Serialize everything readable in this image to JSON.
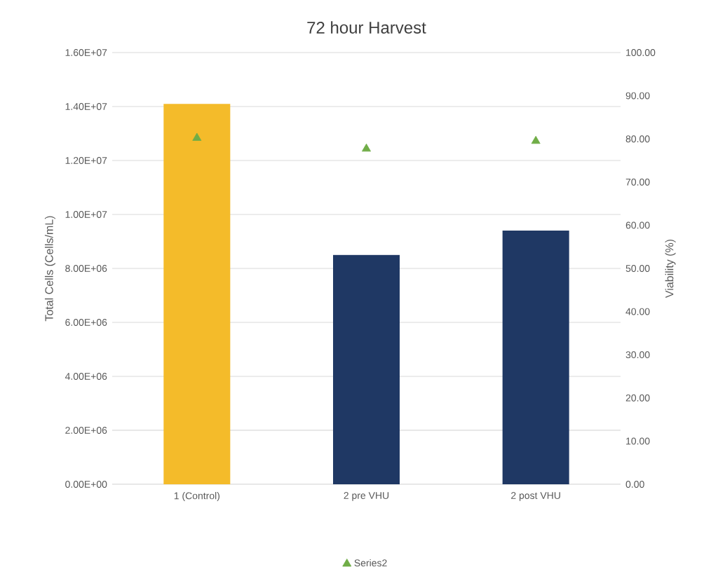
{
  "chart_data": {
    "type": "bar",
    "title": "72 hour Harvest",
    "ylabel": "Total Cells (Cells/mL)",
    "y2label": "Viability (%)",
    "categories": [
      "1 (Control)",
      "2 pre VHU",
      "2 post VHU"
    ],
    "series": [
      {
        "colors": [
          "#f4bb2a",
          "#1f3864",
          "#1f3864"
        ],
        "values": [
          14100000,
          8500000,
          9400000
        ]
      },
      {
        "type": "scatter",
        "name": "Series2",
        "color": "#70ad47",
        "axis": "y2",
        "marker": "triangle",
        "values": [
          80.2,
          77.7,
          79.5
        ]
      }
    ],
    "ylim": [
      0,
      16000000
    ],
    "yticks": [
      {
        "value": 0,
        "label": "0.00E+00"
      },
      {
        "value": 2000000,
        "label": "2.00E+06"
      },
      {
        "value": 4000000,
        "label": "4.00E+06"
      },
      {
        "value": 6000000,
        "label": "6.00E+06"
      },
      {
        "value": 8000000,
        "label": "8.00E+06"
      },
      {
        "value": 10000000,
        "label": "1.00E+07"
      },
      {
        "value": 12000000,
        "label": "1.20E+07"
      },
      {
        "value": 14000000,
        "label": "1.40E+07"
      },
      {
        "value": 16000000,
        "label": "1.60E+07"
      }
    ],
    "y2lim": [
      0,
      100
    ],
    "y2ticks": [
      {
        "value": 0,
        "label": "0.00"
      },
      {
        "value": 10,
        "label": "10.00"
      },
      {
        "value": 20,
        "label": "20.00"
      },
      {
        "value": 30,
        "label": "30.00"
      },
      {
        "value": 40,
        "label": "40.00"
      },
      {
        "value": 50,
        "label": "50.00"
      },
      {
        "value": 60,
        "label": "60.00"
      },
      {
        "value": 70,
        "label": "70.00"
      },
      {
        "value": 80,
        "label": "80.00"
      },
      {
        "value": 90,
        "label": "90.00"
      },
      {
        "value": 100,
        "label": "100.00"
      }
    ],
    "grid": "y",
    "legend": "bottom"
  }
}
